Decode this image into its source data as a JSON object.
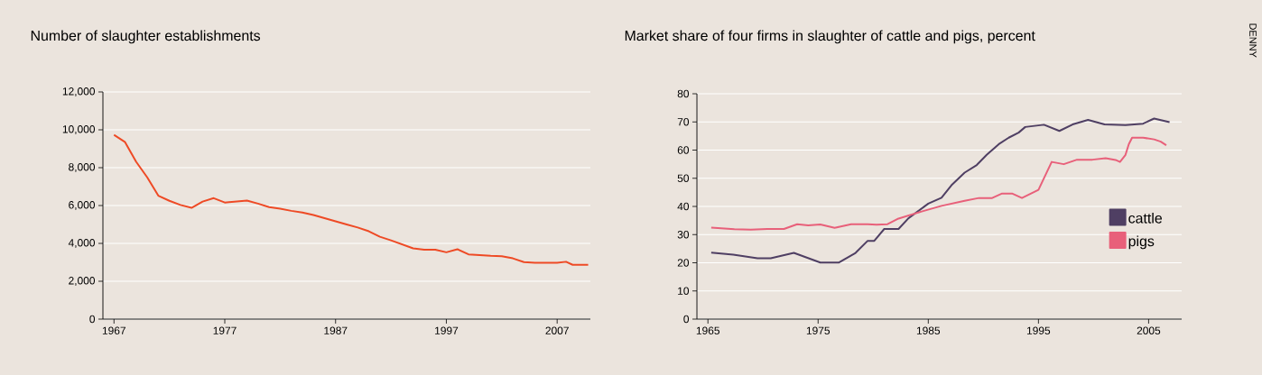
{
  "chart_data": [
    {
      "type": "line",
      "title": "Number of slaughter establishments",
      "x": [
        1967,
        1968,
        1969,
        1970,
        1971,
        1972,
        1973,
        1974,
        1975,
        1976,
        1977,
        1978,
        1979,
        1980,
        1981,
        1982,
        1983,
        1984,
        1985,
        1986,
        1987,
        1988,
        1989,
        1990,
        1991,
        1992,
        1993,
        1994,
        1995,
        1996,
        1997,
        1998,
        1999,
        2000,
        2001,
        2002,
        2003,
        2004,
        2005,
        2007,
        2007.8,
        2008.4,
        2009.8
      ],
      "values": [
        9730,
        9350,
        8310,
        7490,
        6520,
        6250,
        6030,
        5880,
        6210,
        6390,
        6160,
        6210,
        6260,
        6100,
        5920,
        5830,
        5720,
        5630,
        5500,
        5330,
        5170,
        5000,
        4840,
        4640,
        4350,
        4160,
        3950,
        3740,
        3670,
        3670,
        3530,
        3690,
        3420,
        3380,
        3340,
        3320,
        3210,
        3010,
        2980,
        2980,
        3030,
        2870,
        2870
      ],
      "color": "#ee4a25",
      "xlim": [
        1966,
        2010
      ],
      "xticks": [
        1967,
        1977,
        1987,
        1997,
        2007
      ],
      "ylim": [
        0,
        12000
      ],
      "yticks": [
        0,
        {
          "value": 2000,
          "label": "2,000"
        },
        {
          "value": 4000,
          "label": "4,000"
        },
        {
          "value": 6000,
          "label": "6,000"
        },
        {
          "value": 8000,
          "label": "8,000"
        },
        {
          "value": 10000,
          "label": "10,000"
        },
        {
          "value": 12000,
          "label": "12,000"
        }
      ],
      "grid": "y",
      "legend": false
    },
    {
      "type": "line",
      "title": "Market share of four firms in slaughter of cattle and pigs, percent",
      "series": [
        {
          "name": "cattle",
          "color": "#4f3f63",
          "x": [
            1965.3,
            1967.3,
            1969.5,
            1970.7,
            1972.8,
            1975.2,
            1976.9,
            1978.4,
            1979.5,
            1980.1,
            1981,
            1982.3,
            1983.2,
            1985,
            1986.2,
            1987.1,
            1988.3,
            1989.4,
            1990.3,
            1991.4,
            1992.3,
            1993.2,
            1993.8,
            1995.5,
            1996.9,
            1998.1,
            1999.5,
            2001,
            2002.9,
            2004.5,
            2005.5,
            2006.9
          ],
          "values": [
            23.6,
            22.9,
            21.6,
            21.6,
            23.5,
            20.1,
            20.1,
            23.5,
            27.8,
            27.8,
            32,
            32,
            35.8,
            41,
            43.1,
            47.5,
            52,
            54.7,
            58.3,
            62.1,
            64.4,
            66.2,
            68.2,
            69,
            66.8,
            69.1,
            70.7,
            69.1,
            68.9,
            69.4,
            71.2,
            69.9
          ]
        },
        {
          "name": "pigs",
          "color": "#e8607a",
          "x": [
            1965.3,
            1967.4,
            1968.9,
            1970.4,
            1971.9,
            1973.1,
            1974.1,
            1975.2,
            1976.5,
            1978,
            1979.5,
            1980.3,
            1981.3,
            1982.3,
            1984.4,
            1986.2,
            1988.3,
            1989.6,
            1990.8,
            1991.7,
            1992.6,
            1993.5,
            1995,
            1996.2,
            1997.3,
            1998.5,
            1999.9,
            2001.1,
            2002,
            2002.4,
            2002.9,
            2003.2,
            2003.5,
            2004.5,
            2005.5,
            2006.1,
            2006.6
          ],
          "values": [
            32.5,
            31.9,
            31.8,
            32,
            32,
            33.7,
            33.3,
            33.6,
            32.4,
            33.7,
            33.7,
            33.5,
            33.7,
            35.7,
            38.2,
            40.2,
            42,
            43,
            43,
            44.6,
            44.6,
            43,
            45.9,
            55.8,
            55,
            56.6,
            56.6,
            57.1,
            56.5,
            55.8,
            58.3,
            62.1,
            64.4,
            64.4,
            63.8,
            63,
            61.7
          ]
        }
      ],
      "xlim": [
        1964,
        2008
      ],
      "xticks": [
        1965,
        1975,
        1985,
        1995,
        2005
      ],
      "ylim": [
        0,
        80
      ],
      "yticks": [
        0,
        10,
        20,
        30,
        40,
        50,
        60,
        70,
        80
      ],
      "grid": "y",
      "legend": "right",
      "annotations": [
        "DENNY"
      ]
    }
  ]
}
